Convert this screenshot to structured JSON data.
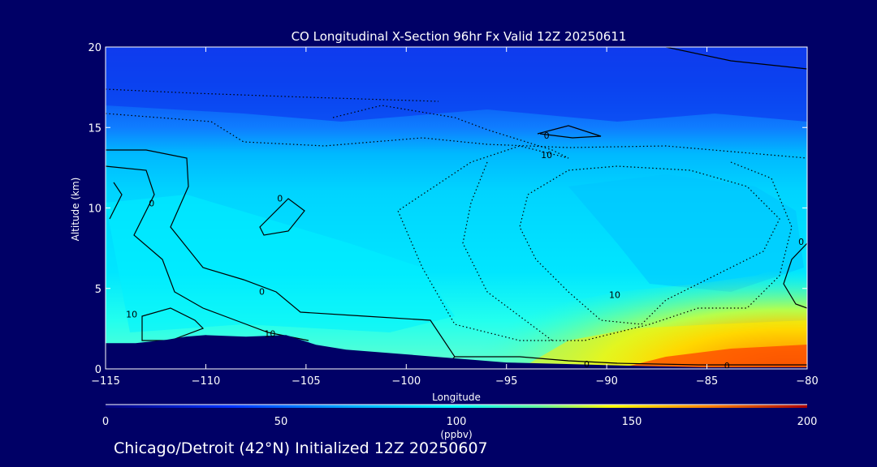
{
  "chart_data": {
    "type": "heatmap",
    "title": "CO Longitudinal X-Section 96hr  Fx Valid 12Z 20250611",
    "xlabel": "Longitude",
    "ylabel": "Altitude (km)",
    "xlim": [
      -115,
      -80
    ],
    "ylim": [
      0,
      20
    ],
    "x_ticks": [
      -115,
      -110,
      -105,
      -100,
      -95,
      -90,
      -85,
      -80
    ],
    "x_tick_labels": [
      "−115",
      "−110",
      "−105",
      "−100",
      "−95",
      "−90",
      "−85",
      "−80"
    ],
    "y_ticks": [
      0,
      5,
      10,
      15,
      20
    ],
    "y_tick_labels": [
      "0",
      "5",
      "10",
      "15",
      "20"
    ],
    "colorbar": {
      "min": 0,
      "max": 200,
      "ticks": [
        0,
        50,
        100,
        150,
        200
      ],
      "tick_labels": [
        "0",
        "50",
        "100",
        "150",
        "200"
      ],
      "label": "(ppbv)"
    },
    "field_description_levels_ppbv": {
      "upper_stratosphere_20km": 30,
      "tropopause_15km": 50,
      "mid_troposphere_west": 75,
      "mid_troposphere_east": 65,
      "boundary_layer_east": 190
    },
    "contour_labels": [
      {
        "text": "0",
        "lon": -112.7,
        "alt": 10.3
      },
      {
        "text": "0",
        "lon": -106.3,
        "alt": 10.6
      },
      {
        "text": "0",
        "lon": -107.2,
        "alt": 4.8
      },
      {
        "text": "10",
        "lon": -113.7,
        "alt": 3.4
      },
      {
        "text": "10",
        "lon": -106.8,
        "alt": 2.2
      },
      {
        "text": "0",
        "lon": -93.0,
        "alt": 14.5
      },
      {
        "text": "10",
        "lon": -93.0,
        "alt": 13.3
      },
      {
        "text": "10",
        "lon": -89.6,
        "alt": 4.6
      },
      {
        "text": "0",
        "lon": -80.3,
        "alt": 7.9
      },
      {
        "text": "0",
        "lon": -91.0,
        "alt": 0.3
      },
      {
        "text": "0",
        "lon": -84.0,
        "alt": 0.2
      }
    ],
    "terrain": [
      [
        -115,
        1.6
      ],
      [
        -113.5,
        1.6
      ],
      [
        -112,
        1.8
      ],
      [
        -111,
        2.0
      ],
      [
        -110,
        2.1
      ],
      [
        -108,
        2.0
      ],
      [
        -106,
        2.1
      ],
      [
        -104.5,
        1.5
      ],
      [
        -103,
        1.2
      ],
      [
        -101,
        1.0
      ],
      [
        -98,
        0.7
      ],
      [
        -95,
        0.4
      ],
      [
        -92,
        0.3
      ],
      [
        -89,
        0.2
      ],
      [
        -85,
        0.1
      ],
      [
        -80,
        0.1
      ]
    ]
  },
  "footer": "Chicago/Detroit (42°N) Initialized 12Z 20250607"
}
